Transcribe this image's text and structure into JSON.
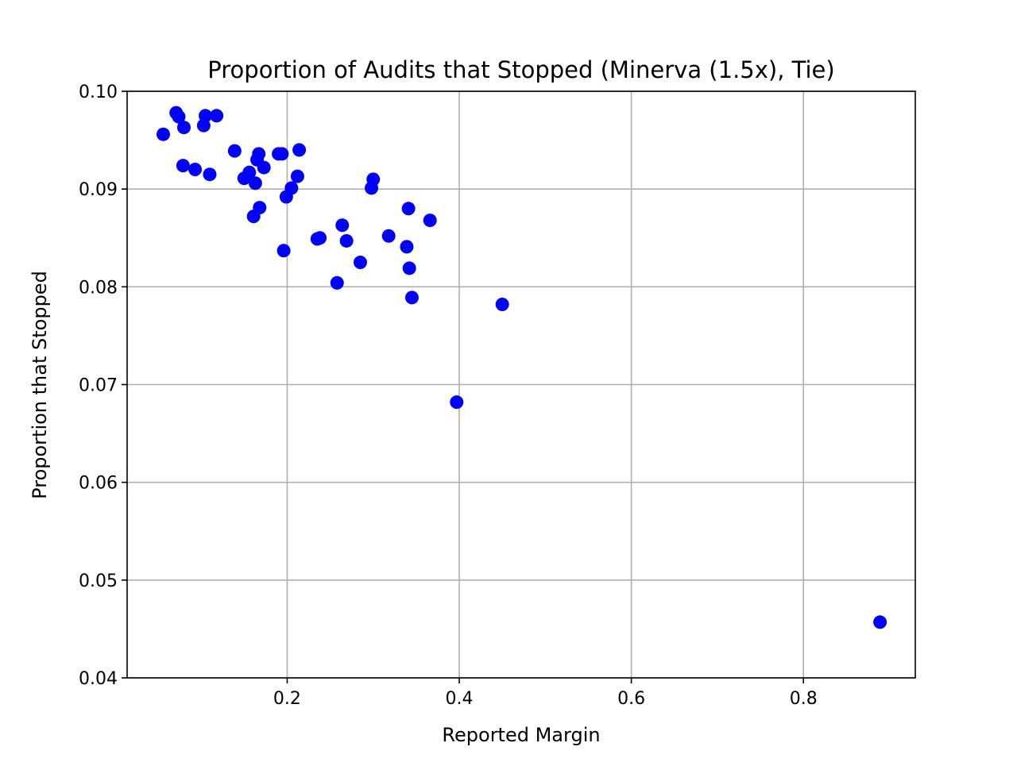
{
  "chart_data": {
    "type": "scatter",
    "title": "Proportion of Audits that Stopped (Minerva (1.5x), Tie)",
    "xlabel": "Reported Margin",
    "ylabel": "Proportion that Stopped",
    "xlim": [
      0.014,
      0.93
    ],
    "ylim": [
      0.04,
      0.1
    ],
    "xticks": [
      0.2,
      0.4,
      0.6,
      0.8
    ],
    "xtick_labels": [
      "0.2",
      "0.4",
      "0.6",
      "0.8"
    ],
    "yticks": [
      0.04,
      0.05,
      0.06,
      0.07,
      0.08,
      0.09,
      0.1
    ],
    "ytick_labels": [
      "0.04",
      "0.05",
      "0.06",
      "0.07",
      "0.08",
      "0.09",
      "0.10"
    ],
    "grid": true,
    "marker_color": "#0000ff",
    "series": [
      {
        "points": [
          [
            0.056,
            0.0956
          ],
          [
            0.071,
            0.0978
          ],
          [
            0.074,
            0.0974
          ],
          [
            0.08,
            0.0963
          ],
          [
            0.079,
            0.0924
          ],
          [
            0.093,
            0.092
          ],
          [
            0.103,
            0.0965
          ],
          [
            0.105,
            0.0975
          ],
          [
            0.11,
            0.0915
          ],
          [
            0.118,
            0.0975
          ],
          [
            0.139,
            0.0939
          ],
          [
            0.15,
            0.0911
          ],
          [
            0.156,
            0.0917
          ],
          [
            0.161,
            0.0872
          ],
          [
            0.163,
            0.0906
          ],
          [
            0.165,
            0.093
          ],
          [
            0.167,
            0.0936
          ],
          [
            0.168,
            0.0881
          ],
          [
            0.173,
            0.0922
          ],
          [
            0.19,
            0.0936
          ],
          [
            0.194,
            0.0936
          ],
          [
            0.196,
            0.0837
          ],
          [
            0.199,
            0.0892
          ],
          [
            0.205,
            0.0901
          ],
          [
            0.212,
            0.0913
          ],
          [
            0.214,
            0.094
          ],
          [
            0.235,
            0.0849
          ],
          [
            0.238,
            0.085
          ],
          [
            0.258,
            0.0804
          ],
          [
            0.264,
            0.0863
          ],
          [
            0.269,
            0.0847
          ],
          [
            0.285,
            0.0825
          ],
          [
            0.298,
            0.0901
          ],
          [
            0.3,
            0.091
          ],
          [
            0.318,
            0.0852
          ],
          [
            0.339,
            0.0841
          ],
          [
            0.341,
            0.088
          ],
          [
            0.342,
            0.0819
          ],
          [
            0.345,
            0.0789
          ],
          [
            0.366,
            0.0868
          ],
          [
            0.397,
            0.0682
          ],
          [
            0.45,
            0.0782
          ],
          [
            0.889,
            0.0457
          ]
        ]
      }
    ]
  }
}
